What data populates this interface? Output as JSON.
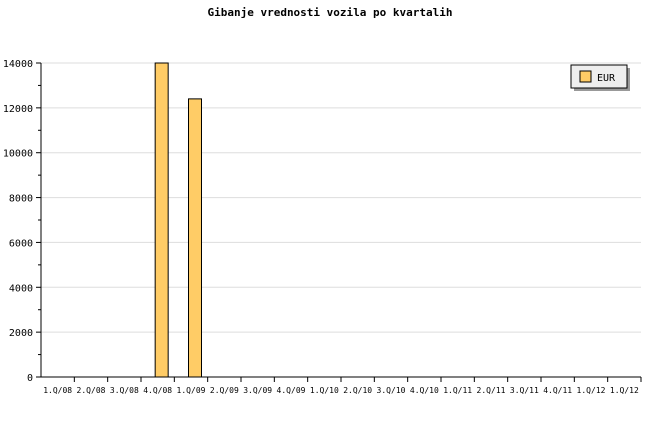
{
  "chart_data": {
    "type": "bar",
    "title": "Gibanje vrednosti vozila po kvartalih",
    "categories": [
      "1.Q/08",
      "2.Q/08",
      "3.Q/08",
      "4.Q/08",
      "1.Q/09",
      "2.Q/09",
      "3.Q/09",
      "4.Q/09",
      "1.Q/10",
      "2.Q/10",
      "3.Q/10",
      "4.Q/10",
      "1.Q/11",
      "2.Q/11",
      "3.Q/11",
      "4.Q/11",
      "1.Q/12",
      "1.Q/12"
    ],
    "series": [
      {
        "name": "EUR",
        "color": "#ffcc66",
        "values": [
          0,
          0,
          0,
          14000,
          12400,
          0,
          0,
          0,
          0,
          0,
          0,
          0,
          0,
          0,
          0,
          0,
          0,
          0
        ]
      }
    ],
    "ylim": [
      0,
      14000
    ],
    "yticks": [
      0,
      2000,
      4000,
      6000,
      8000,
      10000,
      12000,
      14000
    ],
    "grid": true,
    "legend": "top-right"
  }
}
